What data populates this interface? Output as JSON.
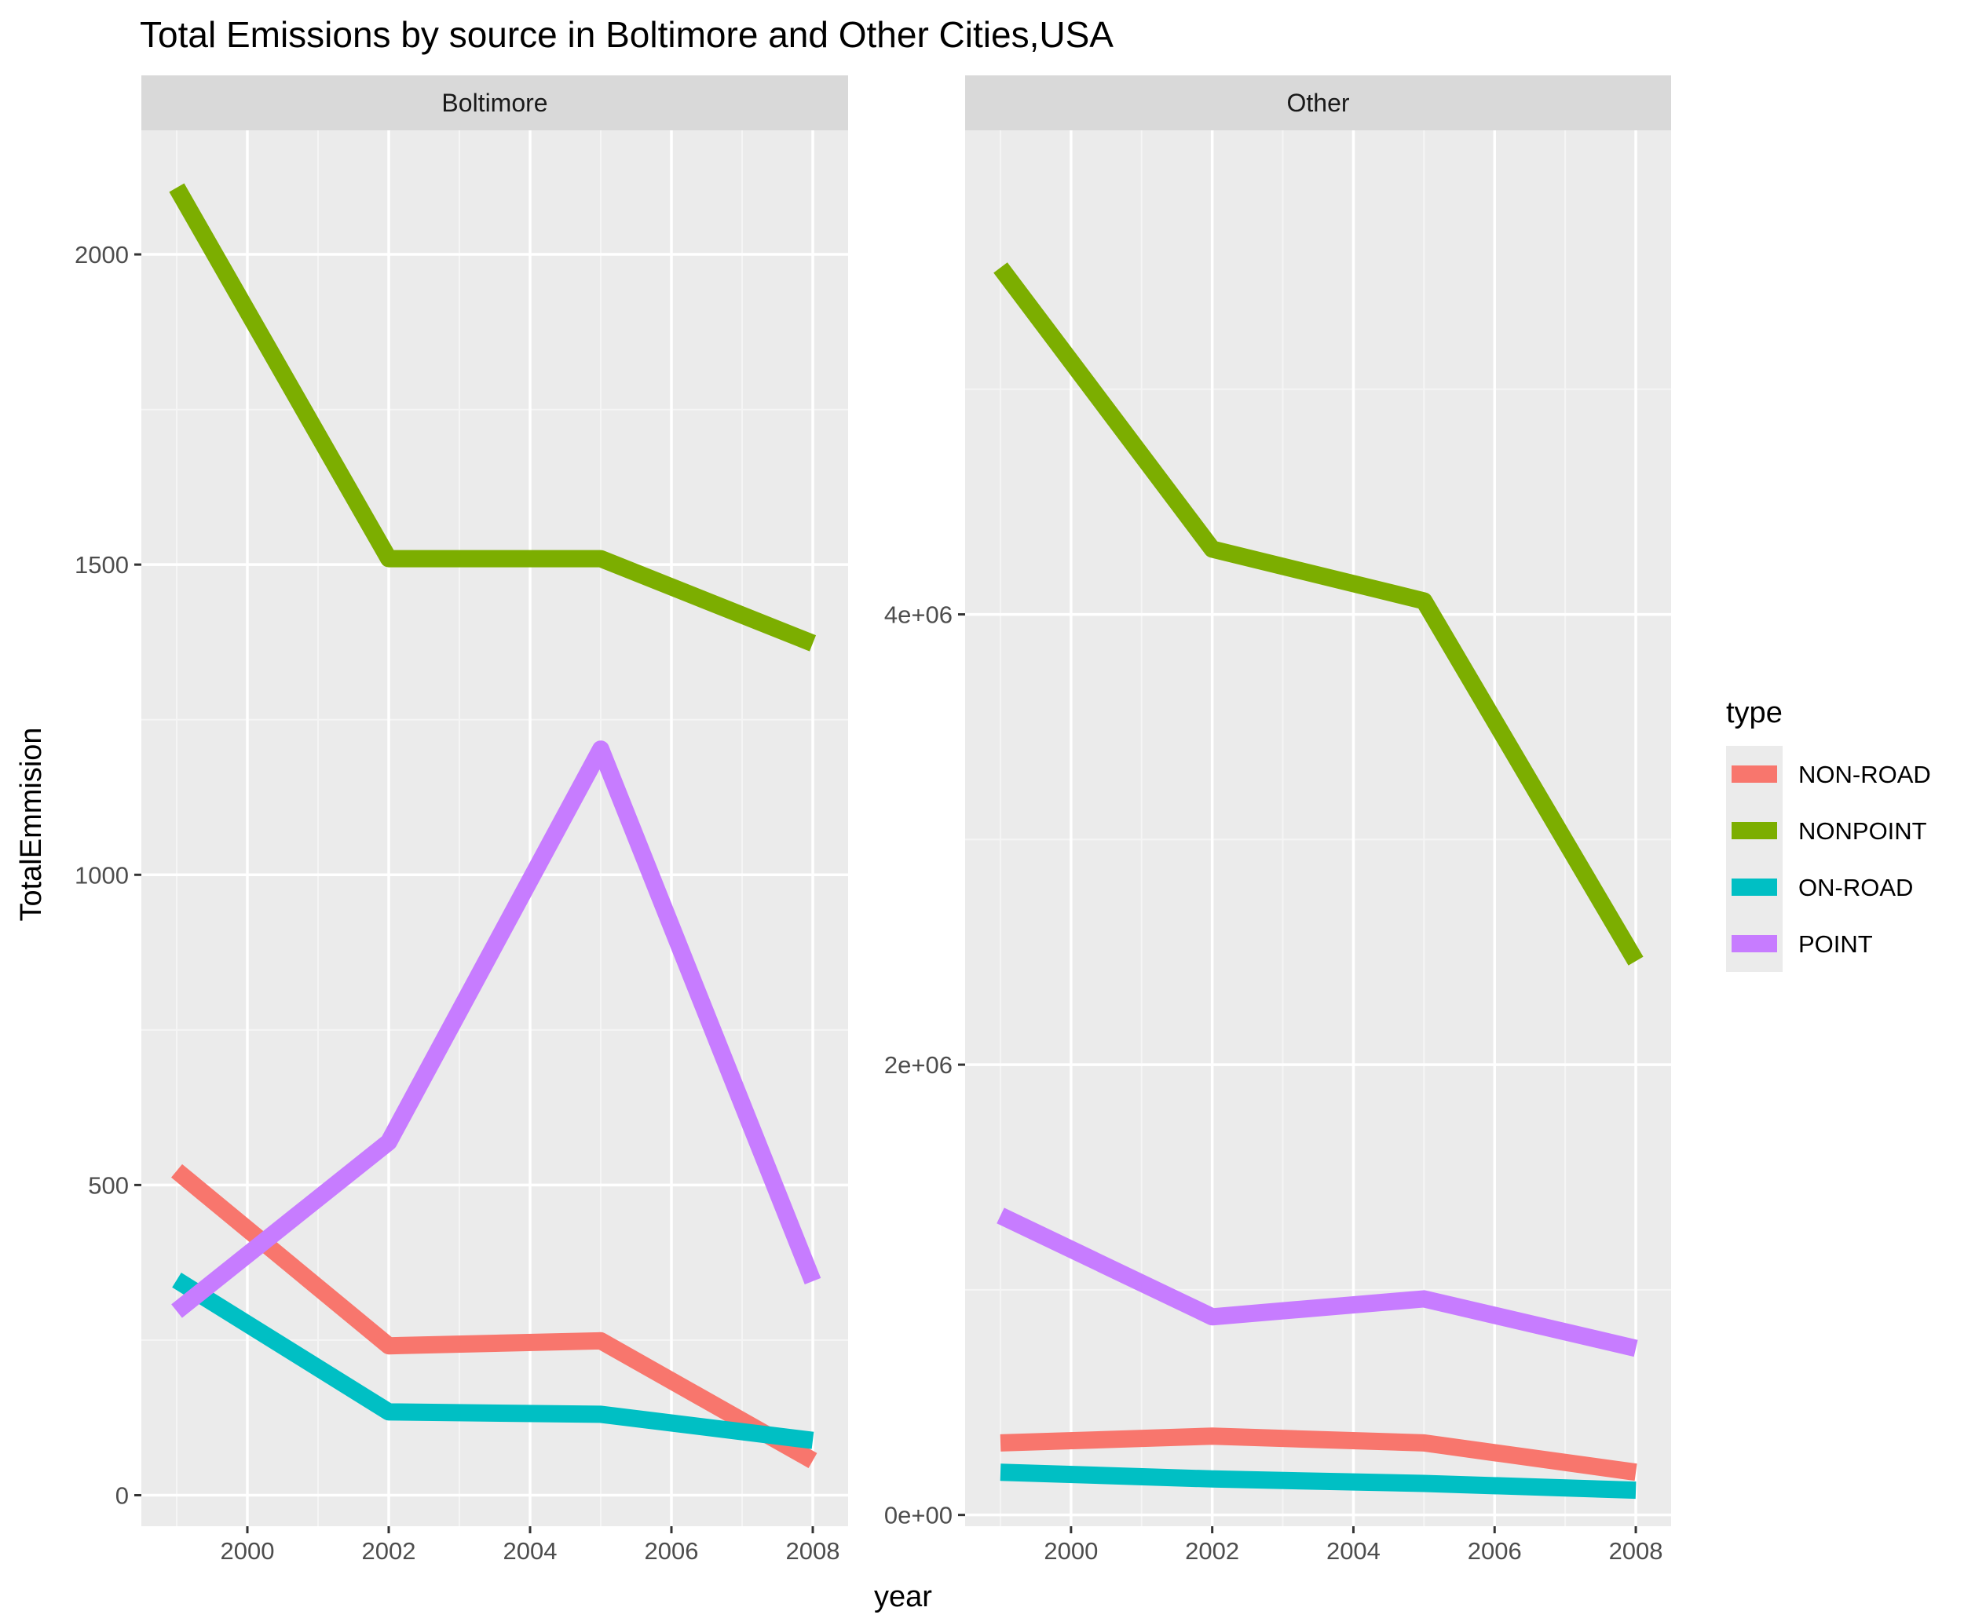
{
  "chart_data": {
    "type": "line",
    "title": "Total Emissions by source in Boltimore and Other Cities,USA",
    "xlabel": "year",
    "ylabel": "TotalEmmision",
    "legend_title": "type",
    "legend_position": "right",
    "grid": true,
    "x": [
      1999,
      2002,
      2005,
      2008
    ],
    "colors": {
      "NON-ROAD": "#F8766D",
      "NONPOINT": "#7CAE00",
      "ON-ROAD": "#00BFC4",
      "POINT": "#C77CFF"
    },
    "facets": [
      {
        "strip": "Boltimore",
        "xlim": [
          1998.5,
          2008.5
        ],
        "ylim": [
          -50,
          2200
        ],
        "x_ticks": [
          2000,
          2002,
          2004,
          2006,
          2008
        ],
        "x_tick_labels": [
          "2000",
          "2002",
          "2004",
          "2006",
          "2008"
        ],
        "y_ticks": [
          0,
          500,
          1000,
          1500,
          2000
        ],
        "y_tick_labels": [
          "0",
          "500",
          "1000",
          "1500",
          "2000"
        ],
        "series": [
          {
            "name": "NON-ROAD",
            "values": [
              522.9,
              240.8,
              248.9,
              55.8
            ]
          },
          {
            "name": "NONPOINT",
            "values": [
              2107.6,
              1509.5,
              1509.5,
              1373.2
            ]
          },
          {
            "name": "ON-ROAD",
            "values": [
              346.8,
              134.3,
              130.4,
              88.3
            ]
          },
          {
            "name": "POINT",
            "values": [
              296.8,
              569.3,
              1202.5,
              344.98
            ]
          }
        ]
      },
      {
        "strip": "Other",
        "xlim": [
          1998.5,
          2008.5
        ],
        "ylim": [
          -50000,
          6150000
        ],
        "x_ticks": [
          2000,
          2002,
          2004,
          2006,
          2008
        ],
        "x_tick_labels": [
          "2000",
          "2002",
          "2004",
          "2006",
          "2008"
        ],
        "y_ticks": [
          0,
          2000000,
          4000000
        ],
        "y_tick_labels": [
          "0e+00",
          "2e+06",
          "4e+06"
        ],
        "series": [
          {
            "name": "NON-ROAD",
            "values": [
              320000,
              350000,
              320000,
              190000
            ]
          },
          {
            "name": "NONPOINT",
            "values": [
              5540000,
              4290000,
              4060000,
              2460000
            ]
          },
          {
            "name": "ON-ROAD",
            "values": [
              190000,
              160000,
              140000,
              110000
            ]
          },
          {
            "name": "POINT",
            "values": [
              1330000,
              880000,
              960000,
              740000
            ]
          }
        ]
      }
    ],
    "legend": [
      "NON-ROAD",
      "NONPOINT",
      "ON-ROAD",
      "POINT"
    ]
  }
}
